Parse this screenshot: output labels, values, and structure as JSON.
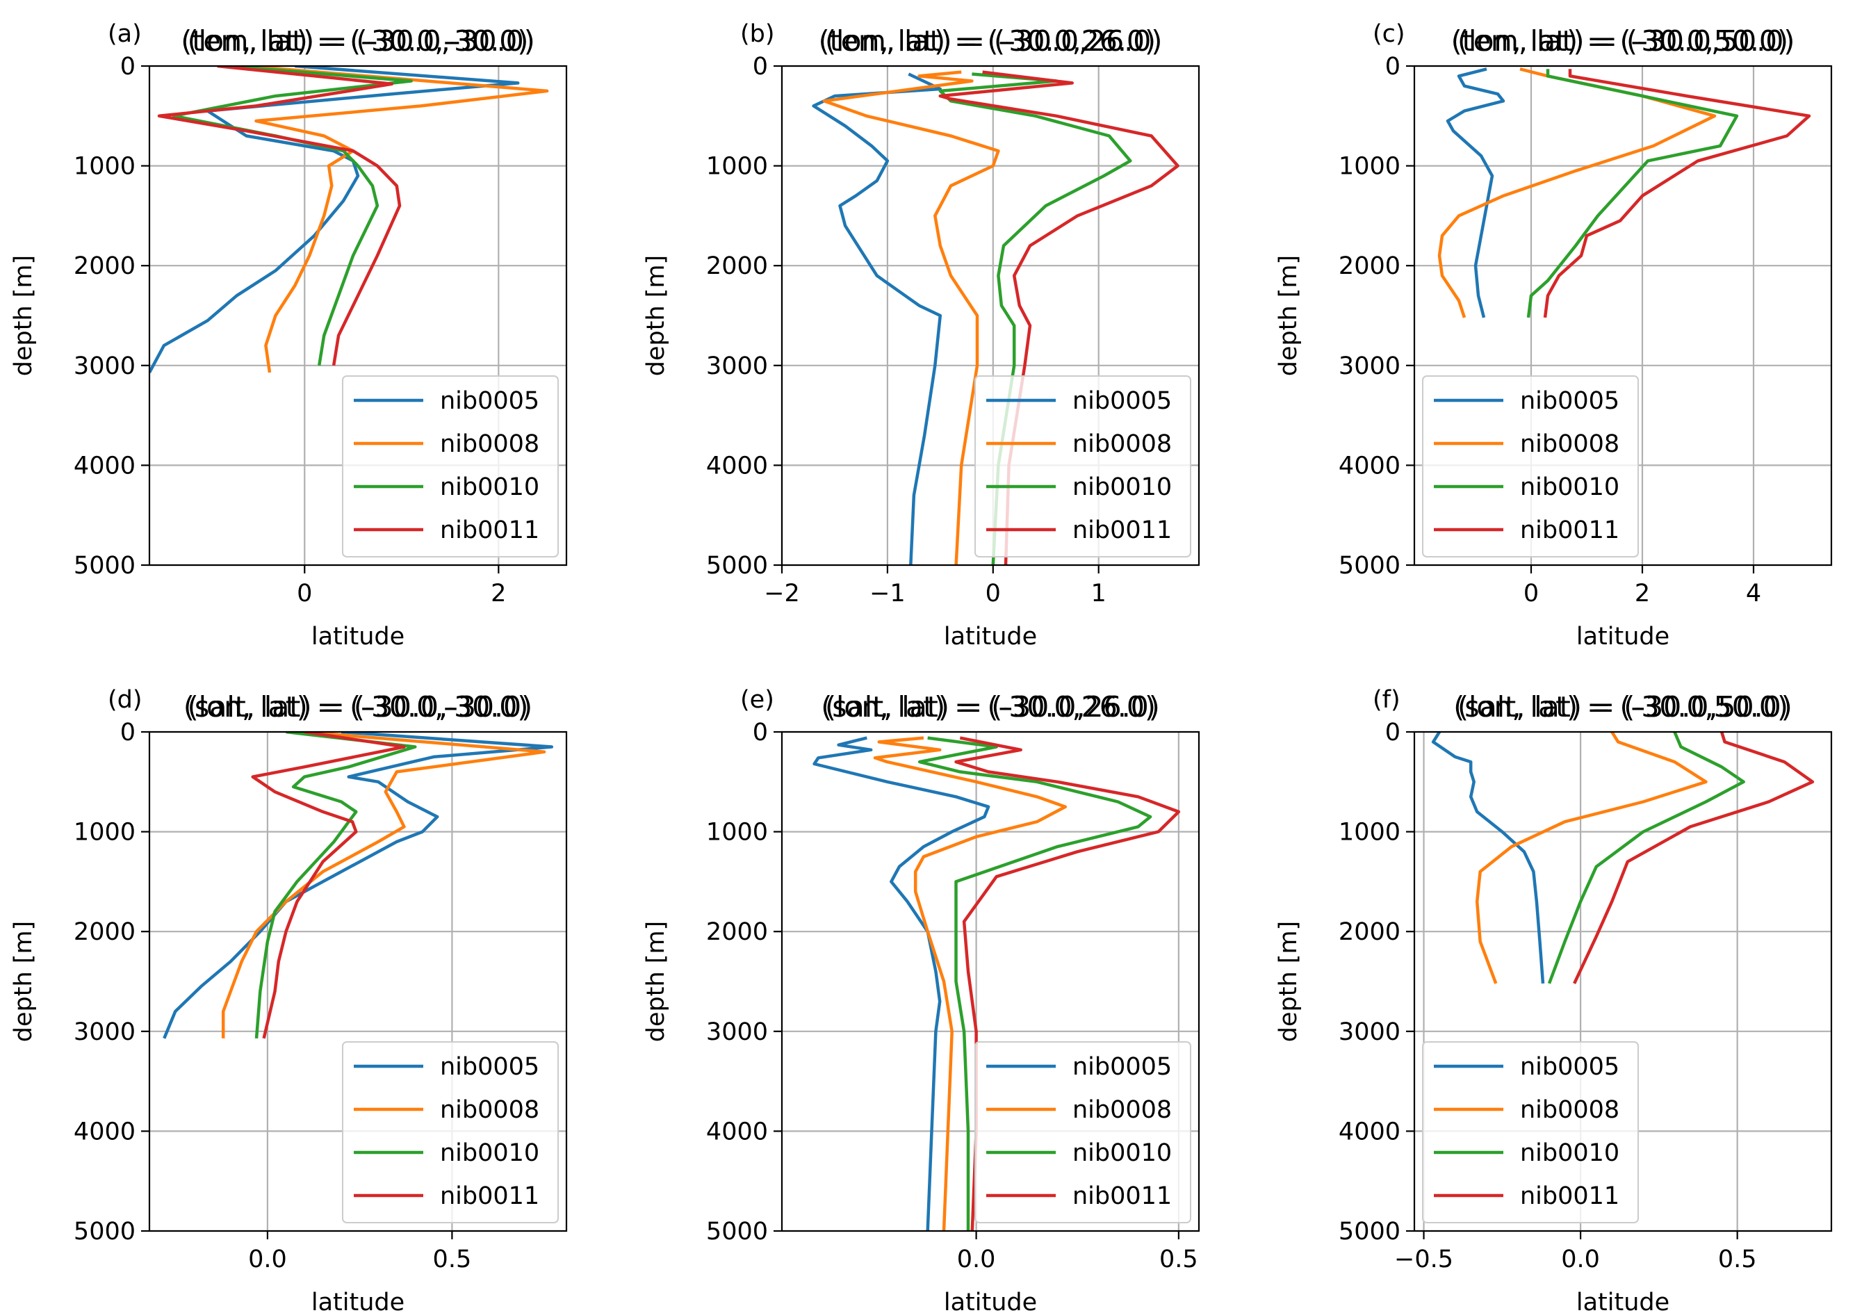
{
  "legend_entries": [
    "nib0005",
    "nib0008",
    "nib0010",
    "nib0011"
  ],
  "colors": {
    "nib0005": "#1f77b4",
    "nib0008": "#ff7f0e",
    "nib0010": "#2ca02c",
    "nib0011": "#d62728",
    "grid": "#b0b0b0",
    "axes": "#000000"
  },
  "chart_data": [
    {
      "type": "line",
      "panel": "(a)",
      "title": "(tem, lat) = (-30.0,-30.0)",
      "title_overlap": "(lon, lat) = (-30.0,-30.0)",
      "xlabel": "latitude",
      "ylabel": "depth [m]",
      "xlim": [
        -1.6,
        2.7
      ],
      "ylim": [
        5000,
        0
      ],
      "xticks": [
        0,
        2
      ],
      "xtick_labels": [
        "0",
        "2"
      ],
      "yticks": [
        0,
        1000,
        2000,
        3000,
        4000,
        5000
      ],
      "ytick_labels": [
        "0",
        "1000",
        "2000",
        "3000",
        "4000",
        "5000"
      ],
      "grid": true,
      "legend_position": "lower right",
      "series": [
        {
          "name": "nib0005",
          "x": [
            -0.1,
            2.2,
            0.9,
            -1.0,
            -0.6,
            0.3,
            0.5,
            0.55,
            0.4,
            0.1,
            -0.3,
            -0.7,
            -1.0,
            -1.45,
            -1.6
          ],
          "y": [
            0,
            170,
            280,
            450,
            700,
            850,
            950,
            1100,
            1350,
            1700,
            2050,
            2300,
            2550,
            2800,
            3070
          ]
        },
        {
          "name": "nib0008",
          "x": [
            -0.6,
            2.5,
            1.2,
            -0.5,
            0.2,
            0.5,
            0.25,
            0.28,
            0.2,
            0.05,
            -0.1,
            -0.3,
            -0.4,
            -0.36
          ],
          "y": [
            0,
            250,
            400,
            550,
            700,
            850,
            1000,
            1200,
            1500,
            1900,
            2200,
            2500,
            2800,
            3070
          ]
        },
        {
          "name": "nib0010",
          "x": [
            -0.8,
            1.1,
            -0.3,
            -1.35,
            -0.3,
            0.4,
            0.55,
            0.7,
            0.75,
            0.5,
            0.35,
            0.2,
            0.15
          ],
          "y": [
            0,
            150,
            300,
            500,
            700,
            850,
            1000,
            1200,
            1400,
            1900,
            2300,
            2700,
            3000
          ]
        },
        {
          "name": "nib0011",
          "x": [
            -0.9,
            0.9,
            -0.5,
            -1.5,
            -0.6,
            0.5,
            0.75,
            0.95,
            0.98,
            0.75,
            0.55,
            0.35,
            0.3
          ],
          "y": [
            0,
            180,
            400,
            500,
            650,
            850,
            1000,
            1200,
            1400,
            1900,
            2300,
            2700,
            3000
          ]
        }
      ]
    },
    {
      "type": "line",
      "panel": "(b)",
      "title": "(tem, lat) = (-30.0,26.0)",
      "title_overlap": "(lon, lat) = (-30.0,26.0)",
      "xlabel": "latitude",
      "ylabel": "depth [m]",
      "xlim": [
        -2.0,
        1.95
      ],
      "ylim": [
        5000,
        0
      ],
      "xticks": [
        -2,
        -1,
        0,
        1
      ],
      "xtick_labels": [
        "−2",
        "−1",
        "0",
        "1"
      ],
      "yticks": [
        0,
        1000,
        2000,
        3000,
        4000,
        5000
      ],
      "ytick_labels": [
        "0",
        "1000",
        "2000",
        "3000",
        "4000",
        "5000"
      ],
      "grid": true,
      "legend_position": "lower right",
      "series": [
        {
          "name": "nib0005",
          "x": [
            -0.8,
            -0.5,
            -1.5,
            -1.7,
            -1.4,
            -1.15,
            -1.0,
            -1.1,
            -1.3,
            -1.45,
            -1.4,
            -1.1,
            -0.7,
            -0.5,
            -0.55,
            -0.65,
            -0.75,
            -0.78
          ],
          "y": [
            80,
            230,
            300,
            400,
            600,
            800,
            950,
            1150,
            1300,
            1400,
            1600,
            2100,
            2400,
            2500,
            3000,
            3700,
            4300,
            5000
          ]
        },
        {
          "name": "nib0008",
          "x": [
            -0.3,
            -0.7,
            -0.2,
            -1.6,
            -1.2,
            -0.4,
            0.05,
            0.0,
            -0.4,
            -0.55,
            -0.5,
            -0.4,
            -0.15,
            -0.15,
            -0.3,
            -0.35
          ],
          "y": [
            60,
            100,
            150,
            350,
            500,
            700,
            850,
            1000,
            1200,
            1500,
            1800,
            2100,
            2500,
            3000,
            4000,
            5000
          ]
        },
        {
          "name": "nib0010",
          "x": [
            -0.2,
            0.6,
            -0.5,
            -0.4,
            0.4,
            1.1,
            1.3,
            1.05,
            0.5,
            0.1,
            0.05,
            0.08,
            0.2,
            0.2,
            0.05,
            0.0
          ],
          "y": [
            80,
            150,
            250,
            350,
            500,
            700,
            950,
            1100,
            1400,
            1800,
            2100,
            2400,
            2600,
            3000,
            4000,
            5000
          ]
        },
        {
          "name": "nib0011",
          "x": [
            -0.1,
            0.75,
            -0.5,
            -0.4,
            0.6,
            1.5,
            1.75,
            1.5,
            0.8,
            0.35,
            0.2,
            0.25,
            0.35,
            0.3,
            0.15,
            0.12
          ],
          "y": [
            60,
            170,
            300,
            330,
            500,
            700,
            1000,
            1200,
            1500,
            1800,
            2100,
            2400,
            2600,
            3000,
            4000,
            5000
          ]
        }
      ]
    },
    {
      "type": "line",
      "panel": "(c)",
      "title": "(tem, lat) = (-30.0,50.0)",
      "title_overlap": "(lon, lat) = (-30.0,50.0)",
      "xlabel": "latitude",
      "ylabel": "depth [m]",
      "xlim": [
        -2.1,
        5.4
      ],
      "ylim": [
        5000,
        0
      ],
      "xticks": [
        0,
        2,
        4
      ],
      "xtick_labels": [
        "0",
        "2",
        "4"
      ],
      "yticks": [
        0,
        1000,
        2000,
        3000,
        4000,
        5000
      ],
      "ytick_labels": [
        "0",
        "1000",
        "2000",
        "3000",
        "4000",
        "5000"
      ],
      "grid": true,
      "legend_position": "lower left",
      "series": [
        {
          "name": "nib0005",
          "x": [
            -0.8,
            -1.3,
            -1.2,
            -0.6,
            -0.5,
            -1.2,
            -1.5,
            -1.4,
            -1.2,
            -0.9,
            -0.7,
            -0.8,
            -0.9,
            -1.0,
            -0.95,
            -0.85
          ],
          "y": [
            30,
            100,
            200,
            280,
            350,
            450,
            550,
            650,
            750,
            900,
            1100,
            1400,
            1700,
            2000,
            2300,
            2520
          ]
        },
        {
          "name": "nib0008",
          "x": [
            -0.2,
            0.3,
            2.0,
            3.3,
            2.2,
            0.8,
            -0.5,
            -1.3,
            -1.6,
            -1.65,
            -1.6,
            -1.3,
            -1.2
          ],
          "y": [
            30,
            100,
            300,
            500,
            800,
            1050,
            1300,
            1500,
            1700,
            1900,
            2100,
            2350,
            2520
          ]
        },
        {
          "name": "nib0010",
          "x": [
            0.3,
            0.3,
            2.0,
            3.7,
            3.4,
            2.1,
            1.2,
            0.8,
            0.3,
            0.0,
            -0.05
          ],
          "y": [
            30,
            100,
            300,
            500,
            800,
            950,
            1500,
            1800,
            2150,
            2300,
            2520
          ]
        },
        {
          "name": "nib0011",
          "x": [
            0.7,
            0.7,
            2.8,
            5.0,
            4.6,
            3.0,
            2.0,
            1.6,
            1.0,
            0.9,
            0.5,
            0.3,
            0.25
          ],
          "y": [
            30,
            100,
            300,
            500,
            700,
            950,
            1300,
            1550,
            1700,
            1900,
            2100,
            2300,
            2520
          ]
        }
      ]
    },
    {
      "type": "line",
      "panel": "(d)",
      "title": "(salt, lat) = (-30.0,-30.0)",
      "title_overlap": "(lon, lat) = (-30.0,-30.0)",
      "xlabel": "latitude",
      "ylabel": "depth [m]",
      "xlim": [
        -0.32,
        0.81
      ],
      "ylim": [
        5000,
        0
      ],
      "xticks": [
        0.0,
        0.5
      ],
      "xtick_labels": [
        "0.0",
        "0.5"
      ],
      "yticks": [
        0,
        1000,
        2000,
        3000,
        4000,
        5000
      ],
      "ytick_labels": [
        "0",
        "1000",
        "2000",
        "3000",
        "4000",
        "5000"
      ],
      "grid": true,
      "legend_position": "lower right",
      "series": [
        {
          "name": "nib0005",
          "x": [
            0.2,
            0.77,
            0.45,
            0.22,
            0.3,
            0.38,
            0.46,
            0.42,
            0.35,
            0.2,
            0.05,
            -0.02,
            -0.1,
            -0.18,
            -0.25,
            -0.28
          ],
          "y": [
            0,
            150,
            250,
            450,
            500,
            700,
            850,
            1000,
            1100,
            1400,
            1700,
            2000,
            2300,
            2550,
            2800,
            3070
          ]
        },
        {
          "name": "nib0008",
          "x": [
            0.1,
            0.75,
            0.35,
            0.32,
            0.35,
            0.37,
            0.3,
            0.15,
            0.05,
            -0.03,
            -0.07,
            -0.1,
            -0.12,
            -0.12
          ],
          "y": [
            0,
            200,
            400,
            600,
            800,
            950,
            1100,
            1400,
            1700,
            2000,
            2300,
            2600,
            2800,
            3070
          ]
        },
        {
          "name": "nib0010",
          "x": [
            0.05,
            0.4,
            0.22,
            0.1,
            0.07,
            0.2,
            0.24,
            0.18,
            0.08,
            0.02,
            0.0,
            -0.02,
            -0.03
          ],
          "y": [
            0,
            150,
            350,
            450,
            550,
            700,
            800,
            1100,
            1500,
            1800,
            2100,
            2600,
            3070
          ]
        },
        {
          "name": "nib0011",
          "x": [
            0.1,
            0.37,
            0.1,
            -0.04,
            0.02,
            0.15,
            0.23,
            0.24,
            0.15,
            0.08,
            0.05,
            0.03,
            0.02,
            -0.01
          ],
          "y": [
            0,
            150,
            350,
            450,
            600,
            800,
            900,
            1000,
            1300,
            1700,
            2000,
            2300,
            2600,
            3070
          ]
        }
      ]
    },
    {
      "type": "line",
      "panel": "(e)",
      "title": "(salt, lat) = (-30.0,26.0)",
      "title_overlap": "(lon, lat) = (-30.0,26.0)",
      "xlabel": "latitude",
      "ylabel": "depth [m]",
      "xlim": [
        -0.48,
        0.55
      ],
      "ylim": [
        5000,
        0
      ],
      "xticks": [
        0.0,
        0.5
      ],
      "xtick_labels": [
        "0.0",
        "0.5"
      ],
      "yticks": [
        0,
        1000,
        2000,
        3000,
        4000,
        5000
      ],
      "ytick_labels": [
        "0",
        "1000",
        "2000",
        "3000",
        "4000",
        "5000"
      ],
      "grid": true,
      "legend_position": "lower right",
      "series": [
        {
          "name": "nib0005",
          "x": [
            -0.27,
            -0.34,
            -0.26,
            -0.39,
            -0.4,
            -0.22,
            -0.05,
            0.03,
            0.02,
            -0.06,
            -0.13,
            -0.19,
            -0.21,
            -0.17,
            -0.12,
            -0.1,
            -0.09,
            -0.1,
            -0.11,
            -0.12
          ],
          "y": [
            60,
            130,
            180,
            260,
            320,
            500,
            650,
            750,
            850,
            1000,
            1150,
            1350,
            1500,
            1700,
            2000,
            2400,
            2700,
            3000,
            4000,
            5000
          ]
        },
        {
          "name": "nib0008",
          "x": [
            -0.13,
            -0.24,
            -0.09,
            -0.25,
            -0.22,
            0.0,
            0.15,
            0.22,
            0.15,
            0.0,
            -0.13,
            -0.15,
            -0.15,
            -0.12,
            -0.08,
            -0.06,
            -0.08
          ],
          "y": [
            60,
            100,
            180,
            260,
            300,
            500,
            650,
            750,
            900,
            1050,
            1250,
            1400,
            1600,
            2000,
            2500,
            3000,
            5000
          ]
        },
        {
          "name": "nib0010",
          "x": [
            -0.12,
            0.05,
            -0.14,
            -0.04,
            0.15,
            0.35,
            0.43,
            0.4,
            0.2,
            -0.05,
            -0.05,
            -0.05,
            -0.03,
            -0.02,
            -0.02
          ],
          "y": [
            60,
            150,
            300,
            400,
            500,
            700,
            850,
            950,
            1150,
            1500,
            2000,
            2500,
            3000,
            4000,
            5000
          ]
        },
        {
          "name": "nib0011",
          "x": [
            -0.04,
            0.11,
            -0.05,
            0.03,
            0.2,
            0.4,
            0.5,
            0.45,
            0.25,
            0.05,
            -0.03,
            -0.02,
            0.0,
            0.0,
            -0.01
          ],
          "y": [
            60,
            180,
            300,
            400,
            500,
            650,
            800,
            1000,
            1200,
            1450,
            1900,
            2400,
            3000,
            4000,
            5000
          ]
        }
      ]
    },
    {
      "type": "line",
      "panel": "(f)",
      "title": "(salt, lat) = (-30.0,50.0)",
      "title_overlap": "(lon, lat) = (-30.0,50.0)",
      "xlabel": "latitude",
      "ylabel": "depth [m]",
      "xlim": [
        -0.53,
        0.8
      ],
      "ylim": [
        5000,
        0
      ],
      "xticks": [
        -0.5,
        0.0,
        0.5
      ],
      "xtick_labels": [
        "−0.5",
        "0.0",
        "0.5"
      ],
      "yticks": [
        0,
        1000,
        2000,
        3000,
        4000,
        5000
      ],
      "ytick_labels": [
        "0",
        "1000",
        "2000",
        "3000",
        "4000",
        "5000"
      ],
      "grid": true,
      "legend_position": "lower left",
      "series": [
        {
          "name": "nib0005",
          "x": [
            -0.45,
            -0.47,
            -0.4,
            -0.35,
            -0.35,
            -0.34,
            -0.35,
            -0.33,
            -0.25,
            -0.18,
            -0.15,
            -0.14,
            -0.13,
            -0.12
          ],
          "y": [
            0,
            100,
            250,
            300,
            400,
            500,
            650,
            800,
            1000,
            1200,
            1400,
            1700,
            2100,
            2520
          ]
        },
        {
          "name": "nib0008",
          "x": [
            0.1,
            0.12,
            0.3,
            0.4,
            0.2,
            -0.05,
            -0.22,
            -0.32,
            -0.33,
            -0.32,
            -0.27
          ],
          "y": [
            0,
            100,
            300,
            500,
            700,
            900,
            1150,
            1400,
            1700,
            2100,
            2520
          ]
        },
        {
          "name": "nib0010",
          "x": [
            0.3,
            0.32,
            0.45,
            0.52,
            0.4,
            0.2,
            0.05,
            0.0,
            -0.05,
            -0.1
          ],
          "y": [
            0,
            150,
            350,
            500,
            700,
            1000,
            1350,
            1700,
            2100,
            2520
          ]
        },
        {
          "name": "nib0011",
          "x": [
            0.45,
            0.46,
            0.65,
            0.74,
            0.6,
            0.35,
            0.15,
            0.1,
            0.05,
            -0.02
          ],
          "y": [
            0,
            100,
            300,
            500,
            700,
            950,
            1300,
            1700,
            2050,
            2520
          ]
        }
      ]
    }
  ]
}
